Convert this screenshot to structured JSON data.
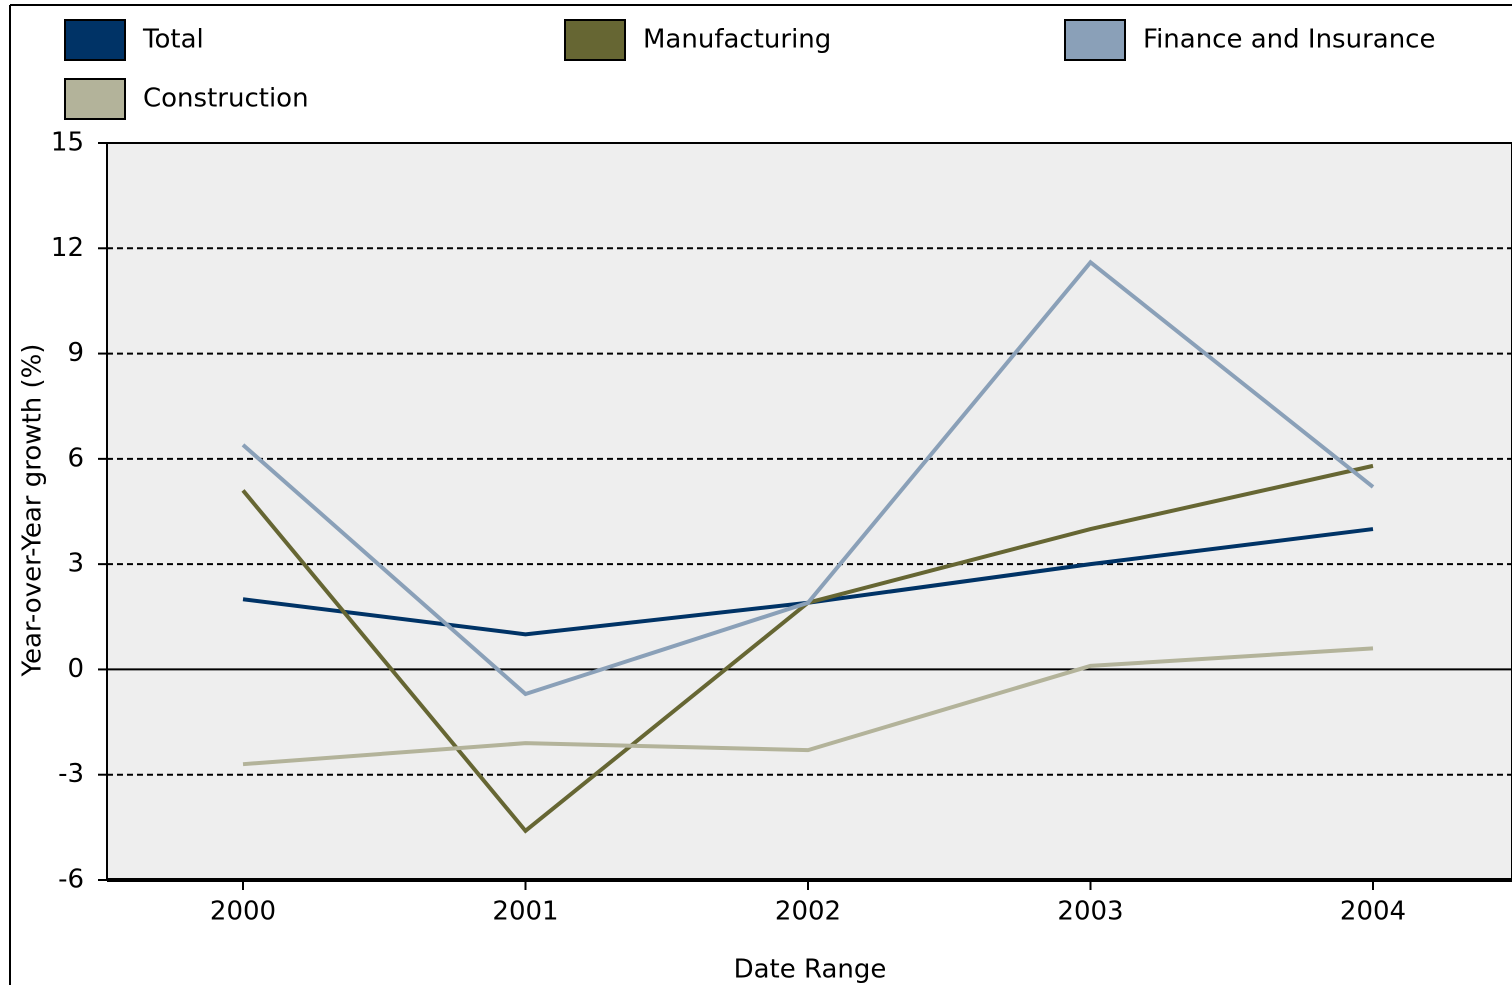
{
  "chart_data": {
    "type": "line",
    "ylabel": "Year-over-Year growth (%)",
    "xlabel": "Date Range",
    "categories": [
      "2000",
      "2001",
      "2002",
      "2003",
      "2004"
    ],
    "series": [
      {
        "name": "Total",
        "color": "#003366",
        "values": [
          2.0,
          1.0,
          1.9,
          3.0,
          4.0
        ]
      },
      {
        "name": "Manufacturing",
        "color": "#666633",
        "values": [
          5.1,
          -4.6,
          1.9,
          4.0,
          5.8
        ]
      },
      {
        "name": "Finance and Insurance",
        "color": "#8aa0b8",
        "values": [
          6.4,
          -0.7,
          1.9,
          11.6,
          5.2
        ]
      },
      {
        "name": "Construction",
        "color": "#b3b39a",
        "values": [
          -2.7,
          -2.1,
          -2.3,
          0.1,
          0.6
        ]
      }
    ],
    "ylim": [
      -6,
      15
    ],
    "yticks": [
      -6,
      -3,
      0,
      3,
      6,
      9,
      12,
      15
    ],
    "grid": true,
    "legend": "top"
  }
}
